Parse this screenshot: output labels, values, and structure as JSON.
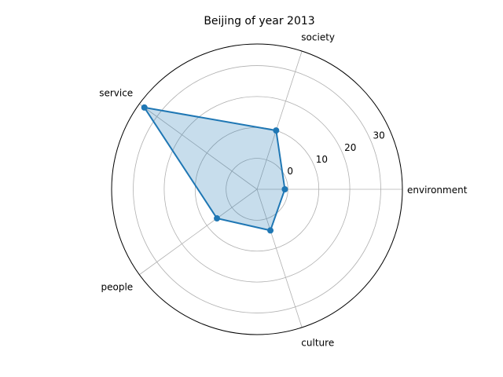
{
  "chart_data": {
    "type": "radar",
    "title": "Beijing of year 2013",
    "categories": [
      "environment",
      "society",
      "service",
      "people",
      "culture"
    ],
    "series": [
      {
        "values": [
          -1,
          10,
          35,
          6,
          4
        ]
      }
    ],
    "rlim": [
      -10,
      37
    ],
    "rticks": [
      0,
      10,
      20,
      30
    ],
    "grid": true,
    "legend": "none",
    "colors": {
      "line": "#1f77b4",
      "fill": "#1f77b4",
      "grid": "#b0b0b0",
      "frame": "#000000"
    }
  }
}
